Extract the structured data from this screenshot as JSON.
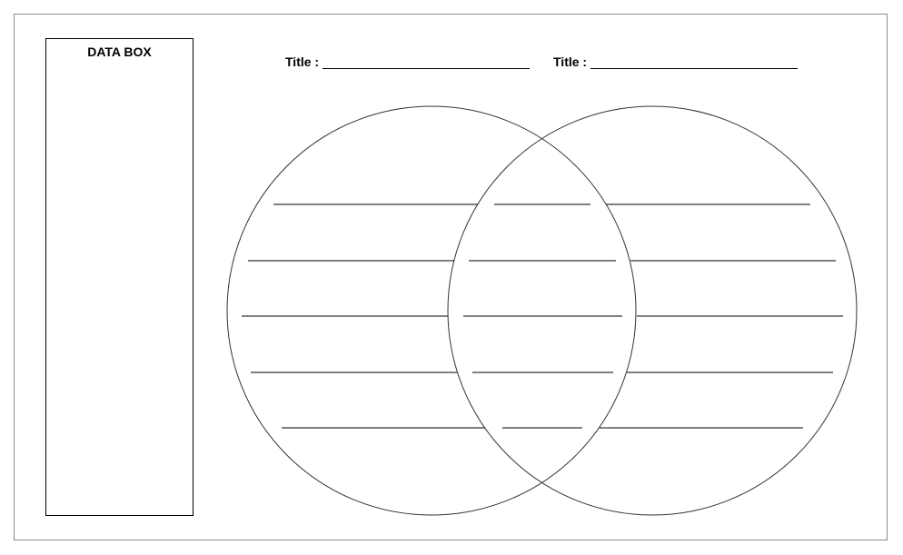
{
  "data_box": {
    "title": "DATA BOX"
  },
  "titles": [
    {
      "label": "Title :"
    },
    {
      "label": "Title :"
    }
  ],
  "venn": {
    "circles": [
      "left-circle",
      "right-circle"
    ],
    "line_color": "#000000",
    "circle_color": "#333333",
    "lines_per_region": 5
  }
}
